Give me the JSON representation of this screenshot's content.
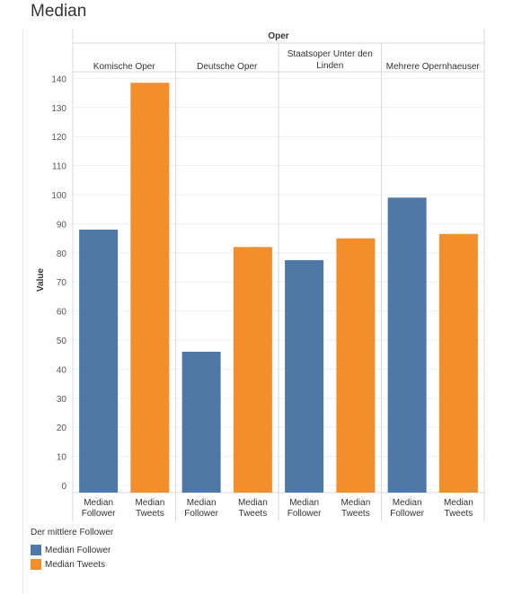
{
  "title": "Median",
  "colors": {
    "follower": "#4e79a7",
    "tweets": "#f28e2b"
  },
  "chart_data": {
    "type": "bar",
    "column_header": "Oper",
    "ylabel": "Value",
    "ylim": [
      0,
      145
    ],
    "yticks": [
      0,
      10,
      20,
      30,
      40,
      50,
      60,
      70,
      80,
      90,
      100,
      110,
      120,
      130,
      140
    ],
    "groups": [
      {
        "label": "Komische Oper",
        "label_lines": [
          "Komische Oper"
        ],
        "bars": [
          {
            "label_lines": [
              "Median",
              "Follower"
            ],
            "series": "Median Follower",
            "value": 88
          },
          {
            "label_lines": [
              "Median",
              "Tweets"
            ],
            "series": "Median Tweets",
            "value": 138.5
          }
        ]
      },
      {
        "label": "Deutsche Oper",
        "label_lines": [
          "Deutsche Oper"
        ],
        "bars": [
          {
            "label_lines": [
              "Median",
              "Follower"
            ],
            "series": "Median Follower",
            "value": 46
          },
          {
            "label_lines": [
              "Median",
              "Tweets"
            ],
            "series": "Median Tweets",
            "value": 82
          }
        ]
      },
      {
        "label": "Staatsoper Unter den Linden",
        "label_lines": [
          "Staatsoper Unter den",
          "Linden"
        ],
        "bars": [
          {
            "label_lines": [
              "Median",
              "Follower"
            ],
            "series": "Median Follower",
            "value": 77.5
          },
          {
            "label_lines": [
              "Median",
              "Tweets"
            ],
            "series": "Median Tweets",
            "value": 85
          }
        ]
      },
      {
        "label": "Mehrere Opernhaeuser",
        "label_lines": [
          "Mehrere Opernhaeuser"
        ],
        "bars": [
          {
            "label_lines": [
              "Median",
              "Follower"
            ],
            "series": "Median Follower",
            "value": 99
          },
          {
            "label_lines": [
              "Median",
              "Tweets"
            ],
            "series": "Median Tweets",
            "value": 86.5
          }
        ]
      }
    ],
    "legend": {
      "title": "Der mittlere Follower",
      "items": [
        {
          "label": "Median Follower",
          "color": "#4e79a7"
        },
        {
          "label": "Median Tweets",
          "color": "#f28e2b"
        }
      ]
    },
    "grid": true
  }
}
